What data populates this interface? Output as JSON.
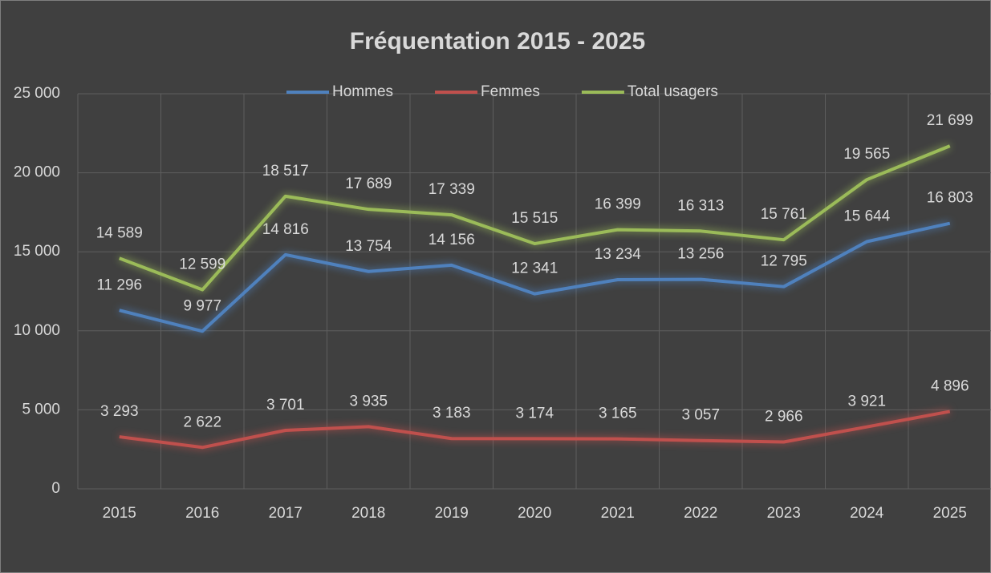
{
  "chart_data": {
    "type": "line",
    "title": "Fréquentation 2015 - 2025",
    "categories": [
      "2015",
      "2016",
      "2017",
      "2018",
      "2019",
      "2020",
      "2021",
      "2022",
      "2023",
      "2024",
      "2025"
    ],
    "series": [
      {
        "name": "Hommes",
        "color": "#4f81bd",
        "values": [
          11296,
          9977,
          14816,
          13754,
          14156,
          12341,
          13234,
          13256,
          12795,
          15644,
          16803
        ],
        "value_labels": [
          "11 296",
          "9 977",
          "14 816",
          "13 754",
          "14 156",
          "12 341",
          "13 234",
          "13 256",
          "12 795",
          "15 644",
          "16 803"
        ]
      },
      {
        "name": "Femmes",
        "color": "#c0504d",
        "values": [
          3293,
          2622,
          3701,
          3935,
          3183,
          3174,
          3165,
          3057,
          2966,
          3921,
          4896
        ],
        "value_labels": [
          "3 293",
          "2 622",
          "3 701",
          "3 935",
          "3 183",
          "3 174",
          "3 165",
          "3 057",
          "2 966",
          "3 921",
          "4 896"
        ]
      },
      {
        "name": "Total usagers",
        "color": "#9bbb59",
        "values": [
          14589,
          12599,
          18517,
          17689,
          17339,
          15515,
          16399,
          16313,
          15761,
          19565,
          21699
        ],
        "value_labels": [
          "14 589",
          "12 599",
          "18 517",
          "17 689",
          "17 339",
          "15 515",
          "16 399",
          "16 313",
          "15 761",
          "19 565",
          "21 699"
        ]
      }
    ],
    "ylim": [
      0,
      25000
    ],
    "yticks": [
      0,
      {
        "value": 5000,
        "label": "5 000"
      },
      {
        "value": 10000,
        "label": "10 000"
      },
      {
        "value": 15000,
        "label": "15 000"
      },
      {
        "value": 20000,
        "label": "20 000"
      },
      {
        "value": 25000,
        "label": "25 000"
      }
    ],
    "grid": true,
    "legend": "top"
  }
}
